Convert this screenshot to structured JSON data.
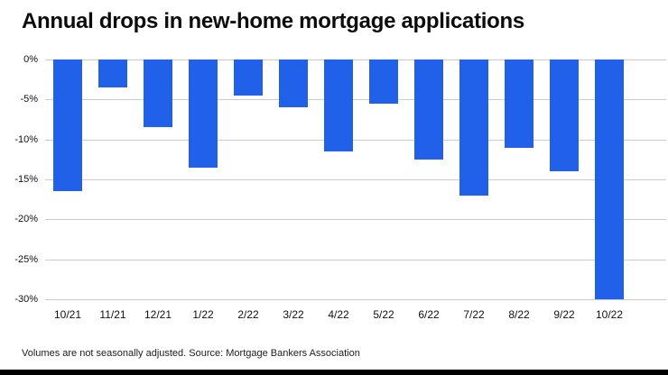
{
  "footer": {
    "note": "Volumes are not seasonally adjusted. Source: Mortgage Bankers Association"
  },
  "colors": {
    "bar": "#2161e9",
    "gridline": "#cccccc",
    "bottom_bar": "#000000"
  },
  "chart_data": {
    "type": "bar",
    "title": "Annual drops in new-home mortgage applications",
    "categories": [
      "10/21",
      "11/21",
      "12/21",
      "1/22",
      "2/22",
      "3/22",
      "4/22",
      "5/22",
      "6/22",
      "7/22",
      "8/22",
      "9/22",
      "10/22"
    ],
    "values": [
      -16.5,
      -3.5,
      -8.5,
      -13.5,
      -4.5,
      -6,
      -11.5,
      -5.5,
      -12.5,
      -17,
      -11,
      -14,
      -30
    ],
    "unit": "%",
    "xlabel": "",
    "ylabel": "",
    "ylim": [
      -30,
      0
    ],
    "yticks": [
      0,
      -5,
      -10,
      -15,
      -20,
      -25,
      -30
    ],
    "ytick_labels": [
      "0%",
      "-5%",
      "-10%",
      "-15%",
      "-20%",
      "-25%",
      "-30%"
    ],
    "grid": "horizontal",
    "legend": "none",
    "source": "Mortgage Bankers Association"
  }
}
